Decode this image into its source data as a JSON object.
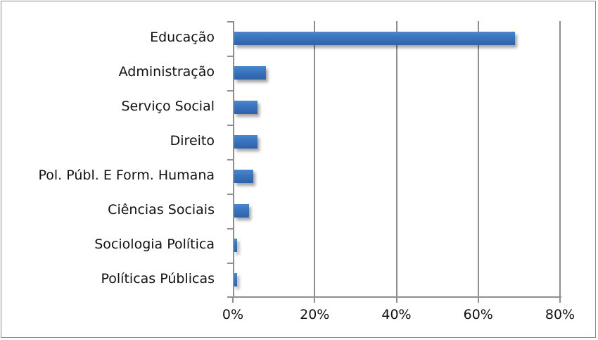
{
  "chart_data": {
    "type": "bar",
    "orientation": "horizontal",
    "title": "",
    "xlabel": "",
    "ylabel": "",
    "categories": [
      "Educação",
      "Administração",
      "Serviço Social",
      "Direito",
      "Pol. Públ. E Form. Humana",
      "Ciências Sociais",
      "Sociologia Política",
      "Políticas Públicas"
    ],
    "values": [
      69,
      8,
      6,
      6,
      5,
      4,
      1,
      1
    ],
    "value_unit": "%",
    "xlim": [
      0,
      80
    ],
    "x_ticks": [
      "0%",
      "20%",
      "40%",
      "60%",
      "80%"
    ],
    "grid": "vertical major gridlines",
    "legend": "none",
    "bar_color": "#3a74bd"
  }
}
